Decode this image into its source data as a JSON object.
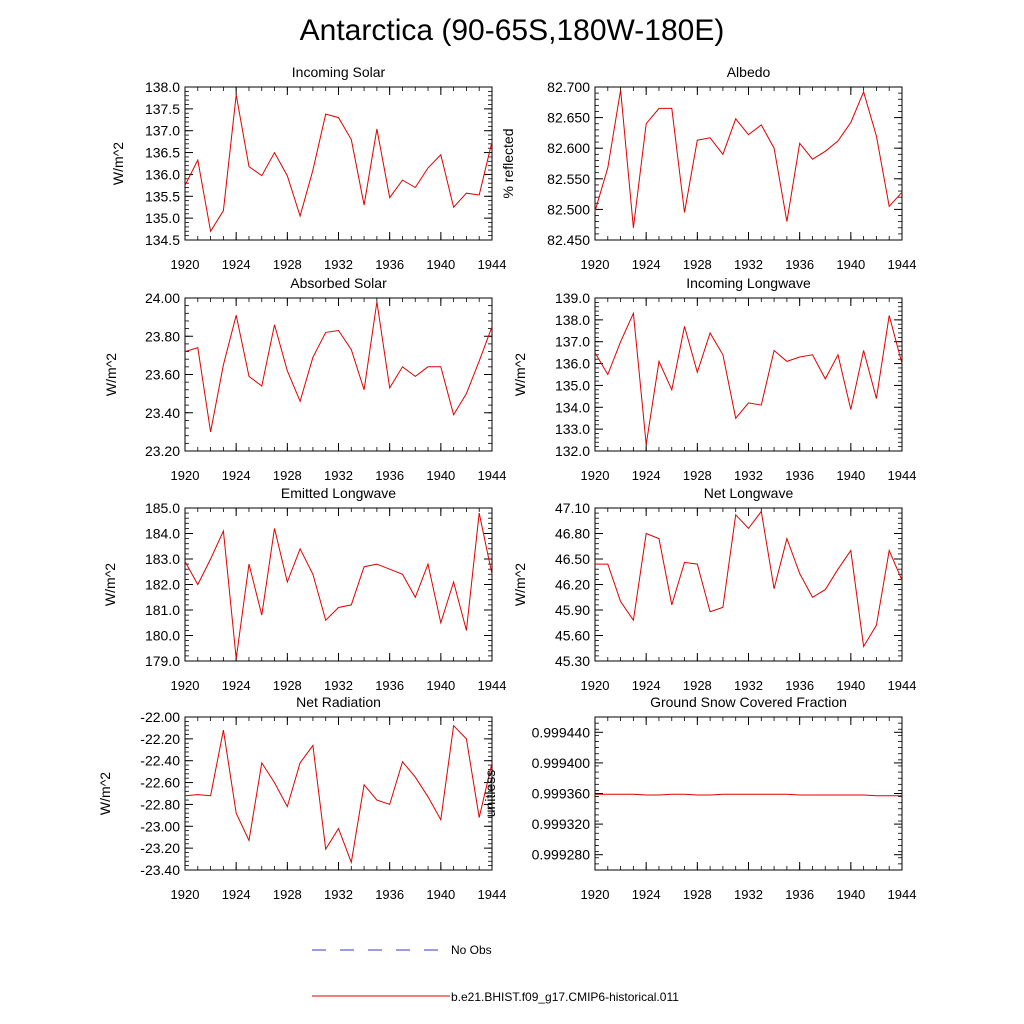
{
  "figure": {
    "title": "Antarctica (90-65S,180W-180E)",
    "legend": [
      {
        "label": "No Obs",
        "color": "#3a3acc",
        "style": "dashed"
      },
      {
        "label": "b.e21.BHIST.f09_g17.CMIP6-historical.011",
        "color": "#e00000",
        "style": "solid"
      }
    ]
  },
  "chart_data": [
    {
      "type": "line",
      "title": "Incoming Solar",
      "ylabel": "W/m^2",
      "xlabel": "",
      "xlim": [
        1920,
        1944
      ],
      "ylim": [
        134.5,
        138.0
      ],
      "xticks": [
        1920,
        1924,
        1928,
        1932,
        1936,
        1940,
        1944
      ],
      "yticks": [
        134.5,
        135.0,
        135.5,
        136.0,
        136.5,
        137.0,
        137.5,
        138.0
      ],
      "yticklabels": [
        "134.5",
        "135.0",
        "135.5",
        "136.0",
        "136.5",
        "137.0",
        "137.5",
        "138.0"
      ],
      "series": [
        {
          "color": "#e00000",
          "x": [
            1920,
            1921,
            1922,
            1923,
            1924,
            1925,
            1926,
            1927,
            1928,
            1929,
            1930,
            1931,
            1932,
            1933,
            1934,
            1935,
            1936,
            1937,
            1938,
            1939,
            1940,
            1941,
            1942,
            1943,
            1944
          ],
          "y": [
            135.75,
            136.33,
            134.7,
            135.17,
            137.82,
            136.18,
            135.97,
            136.5,
            135.97,
            135.05,
            136.1,
            137.38,
            137.3,
            136.8,
            135.3,
            137.04,
            135.47,
            135.87,
            135.7,
            136.15,
            136.45,
            135.25,
            135.57,
            135.53,
            136.75
          ]
        }
      ]
    },
    {
      "type": "line",
      "title": "Albedo",
      "ylabel": "% reflected",
      "xlabel": "",
      "xlim": [
        1920,
        1944
      ],
      "ylim": [
        82.45,
        82.7
      ],
      "xticks": [
        1920,
        1924,
        1928,
        1932,
        1936,
        1940,
        1944
      ],
      "yticks": [
        82.45,
        82.5,
        82.55,
        82.6,
        82.65,
        82.7
      ],
      "yticklabels": [
        "82.450",
        "82.500",
        "82.550",
        "82.600",
        "82.650",
        "82.700"
      ],
      "series": [
        {
          "color": "#e00000",
          "x": [
            1920,
            1921,
            1922,
            1923,
            1924,
            1925,
            1926,
            1927,
            1928,
            1929,
            1930,
            1931,
            1932,
            1933,
            1934,
            1935,
            1936,
            1937,
            1938,
            1939,
            1940,
            1941,
            1942,
            1943,
            1944
          ],
          "y": [
            82.497,
            82.568,
            82.695,
            82.47,
            82.64,
            82.665,
            82.665,
            82.495,
            82.613,
            82.617,
            82.59,
            82.648,
            82.622,
            82.638,
            82.6,
            82.48,
            82.608,
            82.582,
            82.595,
            82.612,
            82.642,
            82.692,
            82.62,
            82.505,
            82.528
          ]
        }
      ]
    },
    {
      "type": "line",
      "title": "Absorbed Solar",
      "ylabel": "W/m^2",
      "xlabel": "",
      "xlim": [
        1920,
        1944
      ],
      "ylim": [
        23.2,
        24.0
      ],
      "xticks": [
        1920,
        1924,
        1928,
        1932,
        1936,
        1940,
        1944
      ],
      "yticks": [
        23.2,
        23.4,
        23.6,
        23.8,
        24.0
      ],
      "yticklabels": [
        "23.20",
        "23.40",
        "23.60",
        "23.80",
        "24.00"
      ],
      "series": [
        {
          "color": "#e00000",
          "x": [
            1920,
            1921,
            1922,
            1923,
            1924,
            1925,
            1926,
            1927,
            1928,
            1929,
            1930,
            1931,
            1932,
            1933,
            1934,
            1935,
            1936,
            1937,
            1938,
            1939,
            1940,
            1941,
            1942,
            1943,
            1944
          ],
          "y": [
            23.72,
            23.74,
            23.3,
            23.65,
            23.91,
            23.59,
            23.54,
            23.86,
            23.62,
            23.46,
            23.69,
            23.82,
            23.83,
            23.73,
            23.52,
            23.98,
            23.53,
            23.64,
            23.59,
            23.64,
            23.64,
            23.39,
            23.5,
            23.67,
            23.85
          ]
        }
      ]
    },
    {
      "type": "line",
      "title": "Incoming Longwave",
      "ylabel": "W/m^2",
      "xlabel": "",
      "xlim": [
        1920,
        1944
      ],
      "ylim": [
        132.0,
        139.0
      ],
      "xticks": [
        1920,
        1924,
        1928,
        1932,
        1936,
        1940,
        1944
      ],
      "yticks": [
        132,
        133,
        134,
        135,
        136,
        137,
        138,
        139
      ],
      "yticklabels": [
        "132.0",
        "133.0",
        "134.0",
        "135.0",
        "136.0",
        "137.0",
        "138.0",
        "139.0"
      ],
      "series": [
        {
          "color": "#e00000",
          "x": [
            1920,
            1921,
            1922,
            1923,
            1924,
            1925,
            1926,
            1927,
            1928,
            1929,
            1930,
            1931,
            1932,
            1933,
            1934,
            1935,
            1936,
            1937,
            1938,
            1939,
            1940,
            1941,
            1942,
            1943,
            1944
          ],
          "y": [
            136.5,
            135.5,
            137.0,
            138.3,
            132.3,
            136.1,
            134.8,
            137.7,
            135.6,
            137.4,
            136.4,
            133.5,
            134.2,
            134.1,
            136.6,
            136.1,
            136.3,
            136.4,
            135.3,
            136.4,
            133.9,
            136.6,
            134.4,
            138.2,
            136.0
          ]
        }
      ]
    },
    {
      "type": "line",
      "title": "Emitted Longwave",
      "ylabel": "W/m^2",
      "xlabel": "",
      "xlim": [
        1920,
        1944
      ],
      "ylim": [
        179.0,
        185.0
      ],
      "xticks": [
        1920,
        1924,
        1928,
        1932,
        1936,
        1940,
        1944
      ],
      "yticks": [
        179,
        180,
        181,
        182,
        183,
        184,
        185
      ],
      "yticklabels": [
        "179.0",
        "180.0",
        "181.0",
        "182.0",
        "183.0",
        "184.0",
        "185.0"
      ],
      "series": [
        {
          "color": "#e00000",
          "x": [
            1920,
            1921,
            1922,
            1923,
            1924,
            1925,
            1926,
            1927,
            1928,
            1929,
            1930,
            1931,
            1932,
            1933,
            1934,
            1935,
            1936,
            1937,
            1938,
            1939,
            1940,
            1941,
            1942,
            1943,
            1944
          ],
          "y": [
            182.9,
            182.0,
            183.0,
            184.1,
            179.1,
            182.8,
            180.8,
            184.2,
            182.1,
            183.4,
            182.4,
            180.6,
            181.1,
            181.2,
            182.7,
            182.8,
            182.6,
            182.4,
            181.5,
            182.8,
            180.5,
            182.1,
            180.2,
            184.8,
            182.4
          ]
        }
      ]
    },
    {
      "type": "line",
      "title": "Net Longwave",
      "ylabel": "W/m^2",
      "xlabel": "",
      "xlim": [
        1920,
        1944
      ],
      "ylim": [
        45.3,
        47.1
      ],
      "xticks": [
        1920,
        1924,
        1928,
        1932,
        1936,
        1940,
        1944
      ],
      "yticks": [
        45.3,
        45.6,
        45.9,
        46.2,
        46.5,
        46.8,
        47.1
      ],
      "yticklabels": [
        "45.30",
        "45.60",
        "45.90",
        "46.20",
        "46.50",
        "46.80",
        "47.10"
      ],
      "series": [
        {
          "color": "#e00000",
          "x": [
            1920,
            1921,
            1922,
            1923,
            1924,
            1925,
            1926,
            1927,
            1928,
            1929,
            1930,
            1931,
            1932,
            1933,
            1934,
            1935,
            1936,
            1937,
            1938,
            1939,
            1940,
            1941,
            1942,
            1943,
            1944
          ],
          "y": [
            46.44,
            46.44,
            46.0,
            45.78,
            46.8,
            46.74,
            45.96,
            46.46,
            46.44,
            45.88,
            45.93,
            47.02,
            46.86,
            47.06,
            46.15,
            46.74,
            46.33,
            46.05,
            46.14,
            46.38,
            46.6,
            45.47,
            45.72,
            46.6,
            46.25
          ]
        }
      ]
    },
    {
      "type": "line",
      "title": "Net Radiation",
      "ylabel": "W/m^2",
      "xlabel": "",
      "xlim": [
        1920,
        1944
      ],
      "ylim": [
        -23.4,
        -22.0
      ],
      "xticks": [
        1920,
        1924,
        1928,
        1932,
        1936,
        1940,
        1944
      ],
      "yticks": [
        -23.4,
        -23.2,
        -23.0,
        -22.8,
        -22.6,
        -22.4,
        -22.2,
        -22.0
      ],
      "yticklabels": [
        "-23.40",
        "-23.20",
        "-23.00",
        "-22.80",
        "-22.60",
        "-22.40",
        "-22.20",
        "-22.00"
      ],
      "series": [
        {
          "color": "#e00000",
          "x": [
            1920,
            1921,
            1922,
            1923,
            1924,
            1925,
            1926,
            1927,
            1928,
            1929,
            1930,
            1931,
            1932,
            1933,
            1934,
            1935,
            1936,
            1937,
            1938,
            1939,
            1940,
            1941,
            1942,
            1943,
            1944
          ],
          "y": [
            -22.72,
            -22.71,
            -22.72,
            -22.12,
            -22.88,
            -23.13,
            -22.42,
            -22.6,
            -22.82,
            -22.42,
            -22.26,
            -23.21,
            -23.02,
            -23.33,
            -22.62,
            -22.76,
            -22.8,
            -22.41,
            -22.55,
            -22.73,
            -22.94,
            -22.08,
            -22.2,
            -22.92,
            -22.42
          ]
        }
      ]
    },
    {
      "type": "line",
      "title": "Ground Snow Covered Fraction",
      "ylabel": "unitless",
      "xlabel": "",
      "xlim": [
        1920,
        1944
      ],
      "ylim": [
        0.99926,
        0.99946
      ],
      "xticks": [
        1920,
        1924,
        1928,
        1932,
        1936,
        1940,
        1944
      ],
      "yticks": [
        0.99928,
        0.99932,
        0.99936,
        0.9994,
        0.99944
      ],
      "yticklabels": [
        "0.999280",
        "0.999320",
        "0.999360",
        "0.999400",
        "0.999440"
      ],
      "series": [
        {
          "color": "#e00000",
          "x": [
            1920,
            1921,
            1922,
            1923,
            1924,
            1925,
            1926,
            1927,
            1928,
            1929,
            1930,
            1931,
            1932,
            1933,
            1934,
            1935,
            1936,
            1937,
            1938,
            1939,
            1940,
            1941,
            1942,
            1943,
            1944
          ],
          "y": [
            0.999359,
            0.999359,
            0.999359,
            0.999359,
            0.999358,
            0.999358,
            0.999359,
            0.999359,
            0.999358,
            0.999358,
            0.999359,
            0.999359,
            0.999359,
            0.999359,
            0.999359,
            0.999359,
            0.999358,
            0.999358,
            0.999358,
            0.999358,
            0.999358,
            0.999358,
            0.999357,
            0.999357,
            0.999357
          ]
        }
      ]
    }
  ]
}
